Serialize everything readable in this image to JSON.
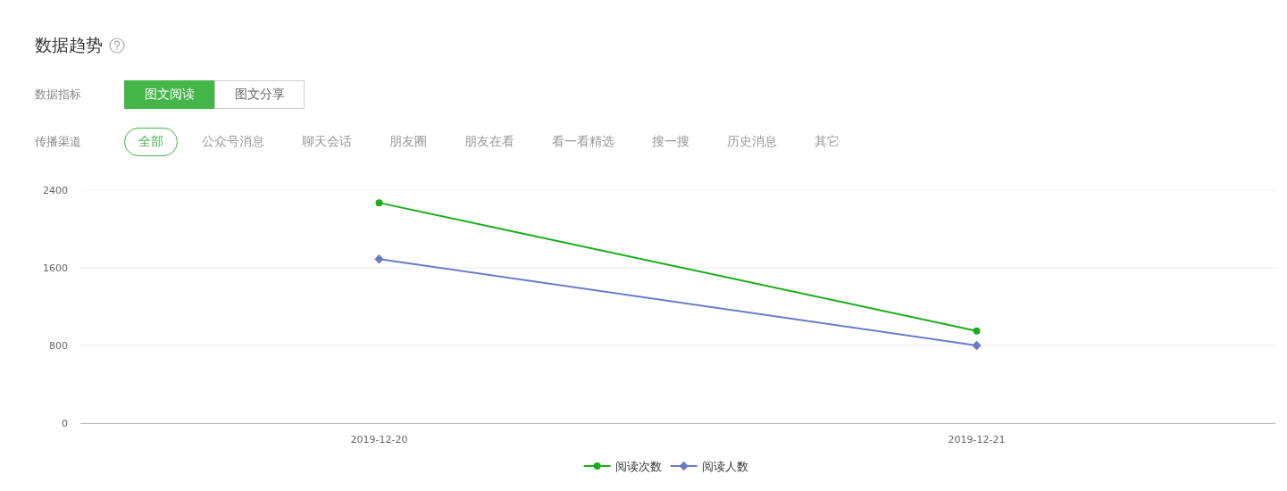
{
  "chart_data": {
    "type": "line",
    "title": "数据趋势",
    "annotations": [
      "数据指标",
      "图文阅读",
      "图文分享",
      "传播渠道",
      "全部",
      "公众号消息",
      "聊天会话",
      "朋友圈",
      "朋友在看",
      "看一看精选",
      "搜一搜",
      "历史消息",
      "其它"
    ],
    "categories": [
      "2019-12-20",
      "2019-12-21"
    ],
    "series": [
      {
        "name": "阅读次数",
        "color": "#1aad19",
        "values": [
          2270,
          950
        ],
        "marker": "circle"
      },
      {
        "name": "阅读人数",
        "color": "#6b7bc8",
        "values": [
          1690,
          800
        ],
        "marker": "diamond"
      }
    ],
    "ylim": [
      0,
      2400
    ],
    "yticks": [
      0,
      800,
      1600,
      2400
    ],
    "grid": "y",
    "legend": "bottom",
    "line_style": "solid"
  }
}
